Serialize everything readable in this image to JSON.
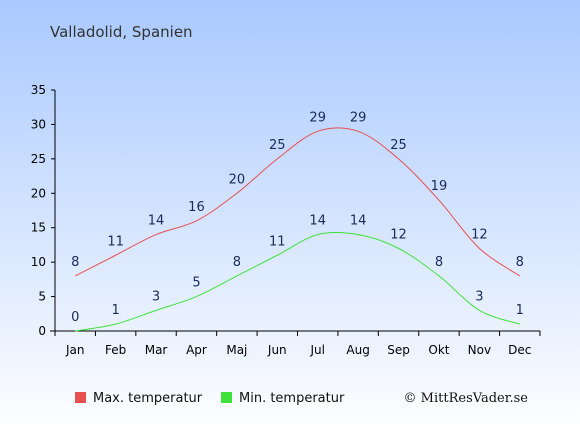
{
  "chart_data": {
    "type": "line",
    "title": "Valladolid, Spanien",
    "categories": [
      "Jan",
      "Feb",
      "Mar",
      "Apr",
      "Maj",
      "Jun",
      "Jul",
      "Aug",
      "Sep",
      "Okt",
      "Nov",
      "Dec"
    ],
    "series": [
      {
        "name": "Max. temperatur",
        "color": "#e8504f",
        "values": [
          8,
          11,
          14,
          16,
          20,
          25,
          29,
          29,
          25,
          19,
          12,
          8
        ]
      },
      {
        "name": "Min. temperatur",
        "color": "#3fe23a",
        "values": [
          0,
          1,
          3,
          5,
          8,
          11,
          14,
          14,
          12,
          8,
          3,
          1
        ]
      }
    ],
    "ylim": [
      0,
      35
    ],
    "yticks": [
      0,
      5,
      10,
      15,
      20,
      25,
      30,
      35
    ],
    "legend_position": "bottom-left",
    "grid": false,
    "background_gradient": [
      "#a9c9ff",
      "#ffffff"
    ]
  },
  "credit": "© MittResVader.se"
}
